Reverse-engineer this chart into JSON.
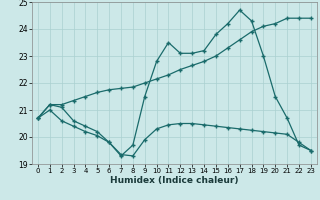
{
  "xlabel": "Humidex (Indice chaleur)",
  "bg_color": "#cce8e8",
  "line_color": "#1a6b6b",
  "grid_color": "#aad0d0",
  "xlim": [
    -0.5,
    23.5
  ],
  "ylim": [
    19,
    25
  ],
  "yticks": [
    19,
    20,
    21,
    22,
    23,
    24,
    25
  ],
  "xticks": [
    0,
    1,
    2,
    3,
    4,
    5,
    6,
    7,
    8,
    9,
    10,
    11,
    12,
    13,
    14,
    15,
    16,
    17,
    18,
    19,
    20,
    21,
    22,
    23
  ],
  "s1_x": [
    0,
    1,
    2,
    3,
    4,
    5,
    6,
    7,
    8,
    9,
    10,
    11,
    12,
    13,
    14,
    15,
    16,
    17,
    18,
    19,
    20,
    21,
    22,
    23
  ],
  "s1_y": [
    20.7,
    21.2,
    21.1,
    20.6,
    20.4,
    20.2,
    19.8,
    19.3,
    19.7,
    21.5,
    22.8,
    23.5,
    23.1,
    23.1,
    23.2,
    23.8,
    24.2,
    24.7,
    24.3,
    23.0,
    21.5,
    20.7,
    19.7,
    19.5
  ],
  "s2_x": [
    0,
    1,
    2,
    3,
    4,
    5,
    6,
    7,
    8,
    9,
    10,
    11,
    12,
    13,
    14,
    15,
    16,
    17,
    18,
    19,
    20,
    21,
    22,
    23
  ],
  "s2_y": [
    20.7,
    21.2,
    21.2,
    21.35,
    21.5,
    21.65,
    21.75,
    21.8,
    21.85,
    22.0,
    22.15,
    22.3,
    22.5,
    22.65,
    22.8,
    23.0,
    23.3,
    23.6,
    23.9,
    24.1,
    24.2,
    24.4,
    24.4,
    24.4
  ],
  "s3_x": [
    0,
    1,
    2,
    3,
    4,
    5,
    6,
    7,
    8,
    9,
    10,
    11,
    12,
    13,
    14,
    15,
    16,
    17,
    18,
    19,
    20,
    21,
    22,
    23
  ],
  "s3_y": [
    20.7,
    21.0,
    20.6,
    20.4,
    20.2,
    20.05,
    19.8,
    19.35,
    19.3,
    19.9,
    20.3,
    20.45,
    20.5,
    20.5,
    20.45,
    20.4,
    20.35,
    20.3,
    20.25,
    20.2,
    20.15,
    20.1,
    19.8,
    19.5
  ]
}
